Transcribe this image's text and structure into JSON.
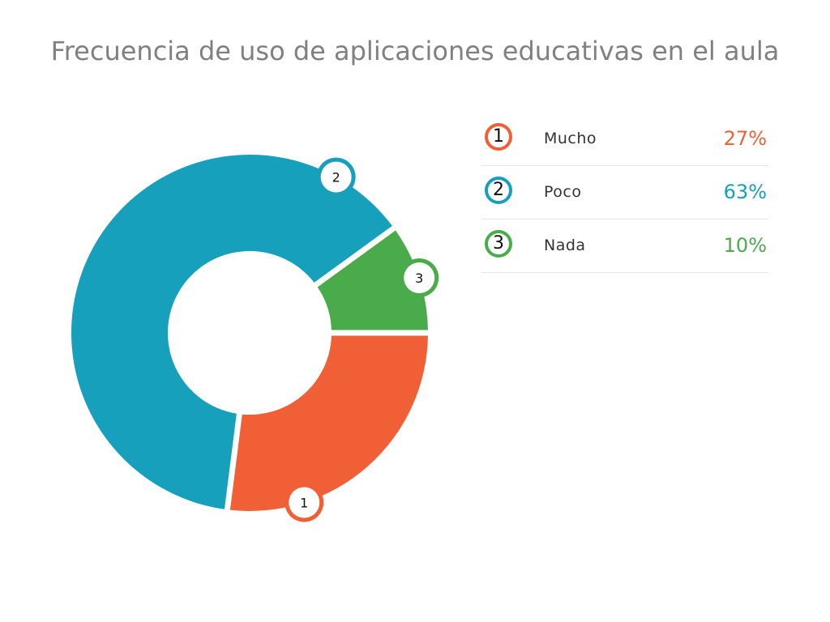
{
  "chart_data": {
    "type": "pie",
    "title": "Frecuencia de uso de aplicaciones educativas en el aula",
    "categories": [
      "Mucho",
      "Poco",
      "Nada"
    ],
    "values": [
      27,
      63,
      10
    ],
    "value_labels": [
      "27%",
      "63%",
      "10%"
    ],
    "numbers": [
      "1",
      "2",
      "3"
    ],
    "colors": [
      "#f05f35",
      "#16a0bb",
      "#4aab4b"
    ],
    "legend_position": "right"
  }
}
